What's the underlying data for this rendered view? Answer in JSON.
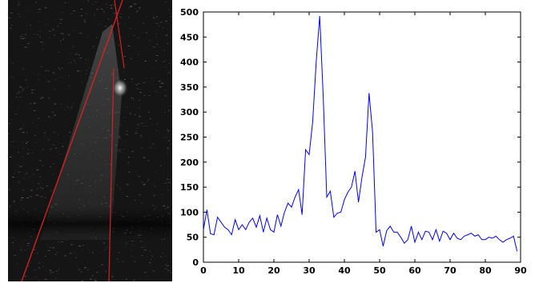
{
  "colors": {
    "plot_line": "#0000ff",
    "overlay_lines": "#d22222",
    "image_background": "#151515",
    "axes": "#000000"
  },
  "image_overlay": {
    "description_icon": "ultrasound-frame-with-red-lines"
  },
  "chart_data": {
    "type": "line",
    "xlim": [
      0,
      90
    ],
    "ylim": [
      0,
      500
    ],
    "x_ticks": [
      0,
      10,
      20,
      30,
      40,
      50,
      60,
      70,
      80,
      90
    ],
    "y_ticks": [
      0,
      50,
      100,
      150,
      200,
      250,
      300,
      350,
      400,
      450,
      500
    ],
    "grid": false,
    "series": [
      {
        "color": "#0000ff",
        "x": [
          0,
          1,
          2,
          3,
          4,
          5,
          6,
          7,
          8,
          9,
          10,
          11,
          12,
          13,
          14,
          15,
          16,
          17,
          18,
          19,
          20,
          21,
          22,
          23,
          24,
          25,
          26,
          27,
          28,
          29,
          30,
          31,
          32,
          33,
          34,
          35,
          36,
          37,
          38,
          39,
          40,
          41,
          42,
          43,
          44,
          45,
          46,
          47,
          48,
          49,
          50,
          51,
          52,
          53,
          54,
          55,
          56,
          57,
          58,
          59,
          60,
          61,
          62,
          63,
          64,
          65,
          66,
          67,
          68,
          69,
          70,
          71,
          72,
          73,
          74,
          75,
          76,
          77,
          78,
          79,
          80,
          81,
          82,
          83,
          84,
          85,
          86,
          87,
          88,
          89
        ],
        "y": [
          65,
          105,
          57,
          55,
          90,
          80,
          70,
          65,
          55,
          85,
          65,
          75,
          65,
          80,
          88,
          70,
          93,
          60,
          88,
          65,
          60,
          95,
          72,
          100,
          118,
          110,
          130,
          145,
          95,
          225,
          215,
          280,
          400,
          492,
          330,
          130,
          142,
          90,
          98,
          100,
          125,
          140,
          150,
          182,
          120,
          170,
          210,
          338,
          260,
          60,
          65,
          32,
          63,
          72,
          60,
          60,
          50,
          38,
          45,
          72,
          40,
          60,
          45,
          62,
          60,
          45,
          65,
          42,
          62,
          58,
          45,
          58,
          48,
          45,
          52,
          55,
          58,
          52,
          55,
          45,
          45,
          50,
          48,
          52,
          45,
          40,
          45,
          48,
          52,
          22
        ]
      }
    ]
  }
}
